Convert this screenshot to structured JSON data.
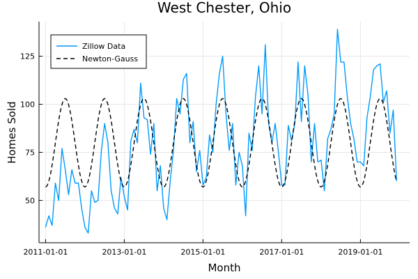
{
  "chart_data": {
    "type": "line",
    "title": "West Chester, Ohio",
    "xlabel": "Month",
    "ylabel": "Homes Sold",
    "x_tick_labels": [
      "2011-01-01",
      "2013-01-01",
      "2015-01-01",
      "2017-01-01",
      "2019-01-01"
    ],
    "y_ticks": [
      50,
      75,
      100,
      125
    ],
    "xlim": [
      "2010-11-01",
      "2020-04-01"
    ],
    "ylim": [
      28,
      143
    ],
    "grid": true,
    "legend_position": "top-left",
    "series": [
      {
        "name": "Zillow Data",
        "style": "solid",
        "color": "#009AFA",
        "x": [
          "2011-01",
          "2011-02",
          "2011-03",
          "2011-04",
          "2011-05",
          "2011-06",
          "2011-07",
          "2011-08",
          "2011-09",
          "2011-10",
          "2011-11",
          "2011-12",
          "2012-01",
          "2012-02",
          "2012-03",
          "2012-04",
          "2012-05",
          "2012-06",
          "2012-07",
          "2012-08",
          "2012-09",
          "2012-10",
          "2012-11",
          "2012-12",
          "2013-01",
          "2013-02",
          "2013-03",
          "2013-04",
          "2013-05",
          "2013-06",
          "2013-07",
          "2013-08",
          "2013-09",
          "2013-10",
          "2013-11",
          "2013-12",
          "2014-01",
          "2014-02",
          "2014-03",
          "2014-04",
          "2014-05",
          "2014-06",
          "2014-07",
          "2014-08",
          "2014-09",
          "2014-10",
          "2014-11",
          "2014-12",
          "2015-01",
          "2015-02",
          "2015-03",
          "2015-04",
          "2015-05",
          "2015-06",
          "2015-07",
          "2015-08",
          "2015-09",
          "2015-10",
          "2015-11",
          "2015-12",
          "2016-01",
          "2016-02",
          "2016-03",
          "2016-04",
          "2016-05",
          "2016-06",
          "2016-07",
          "2016-08",
          "2016-09",
          "2016-10",
          "2016-11",
          "2016-12",
          "2017-01",
          "2017-02",
          "2017-03",
          "2017-04",
          "2017-05",
          "2017-06",
          "2017-07",
          "2017-08",
          "2017-09",
          "2017-10",
          "2017-11",
          "2017-12",
          "2018-01",
          "2018-02",
          "2018-03",
          "2018-04",
          "2018-05",
          "2018-06",
          "2018-07",
          "2018-08",
          "2018-09",
          "2018-10",
          "2018-11",
          "2018-12",
          "2019-01",
          "2019-02",
          "2019-03",
          "2019-04",
          "2019-05",
          "2019-06",
          "2019-07",
          "2019-08",
          "2019-09",
          "2019-10",
          "2019-11",
          "2019-12"
        ],
        "values": [
          36,
          42,
          37,
          59,
          50,
          77,
          66,
          53,
          66,
          59,
          59,
          46,
          36,
          33,
          55,
          49,
          50,
          76,
          90,
          80,
          55,
          46,
          43,
          62,
          52,
          45,
          81,
          87,
          80,
          111,
          93,
          92,
          74,
          90,
          55,
          68,
          46,
          40,
          60,
          76,
          103,
          95,
          113,
          116,
          80,
          91,
          65,
          76,
          58,
          62,
          84,
          75,
          100,
          116,
          125,
          95,
          76,
          90,
          58,
          75,
          68,
          42,
          85,
          76,
          104,
          120,
          95,
          131,
          90,
          80,
          90,
          75,
          58,
          58,
          89,
          81,
          90,
          122,
          91,
          120,
          105,
          70,
          90,
          70,
          71,
          55,
          82,
          87,
          95,
          139,
          122,
          122,
          104,
          90,
          82,
          70,
          70,
          68,
          93,
          104,
          118,
          120,
          121,
          101,
          107,
          85,
          97,
          60
        ]
      },
      {
        "name": "Newton-Gauss",
        "style": "dashed",
        "color": "#000000",
        "amplitude": 23,
        "mean": 80,
        "period_months": 12,
        "peak_month": 7
      }
    ]
  }
}
